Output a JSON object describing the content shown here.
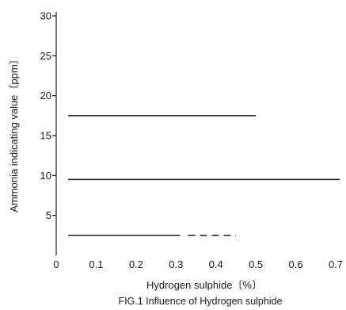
{
  "chart_data": {
    "type": "line",
    "title": "",
    "caption": "FIG.1 Influence of Hydrogen sulphide",
    "xlabel": "Hydrogen sulphide〔%〕",
    "ylabel": "Ammonia indicating value〔ppm〕",
    "xlim": [
      0,
      0.7
    ],
    "ylim": [
      0,
      30
    ],
    "x_ticks": [
      0,
      0.1,
      0.2,
      0.3,
      0.4,
      0.5,
      0.6,
      0.7
    ],
    "x_tick_labels": [
      "0",
      "0.1",
      "0.2",
      "0.3",
      "0.4",
      "0.5",
      "0.6",
      "0.7"
    ],
    "y_ticks": [
      5,
      10,
      15,
      20,
      25,
      30
    ],
    "y_tick_labels": [
      "5",
      "10",
      "15",
      "20",
      "25",
      "30"
    ],
    "grid": false,
    "legend": false,
    "series": [
      {
        "x": [
          0.03,
          0.5
        ],
        "y": [
          17.5,
          17.5
        ],
        "style": "solid",
        "color": "#1a1a1a"
      },
      {
        "x": [
          0.03,
          0.71
        ],
        "y": [
          9.5,
          9.5
        ],
        "style": "solid",
        "color": "#1a1a1a"
      },
      {
        "x": [
          0.03,
          0.31
        ],
        "y": [
          2.5,
          2.5
        ],
        "style": "solid",
        "color": "#1a1a1a"
      },
      {
        "x": [
          0.33,
          0.45
        ],
        "y": [
          2.5,
          2.5
        ],
        "style": "dashed",
        "color": "#1a1a1a"
      }
    ]
  }
}
